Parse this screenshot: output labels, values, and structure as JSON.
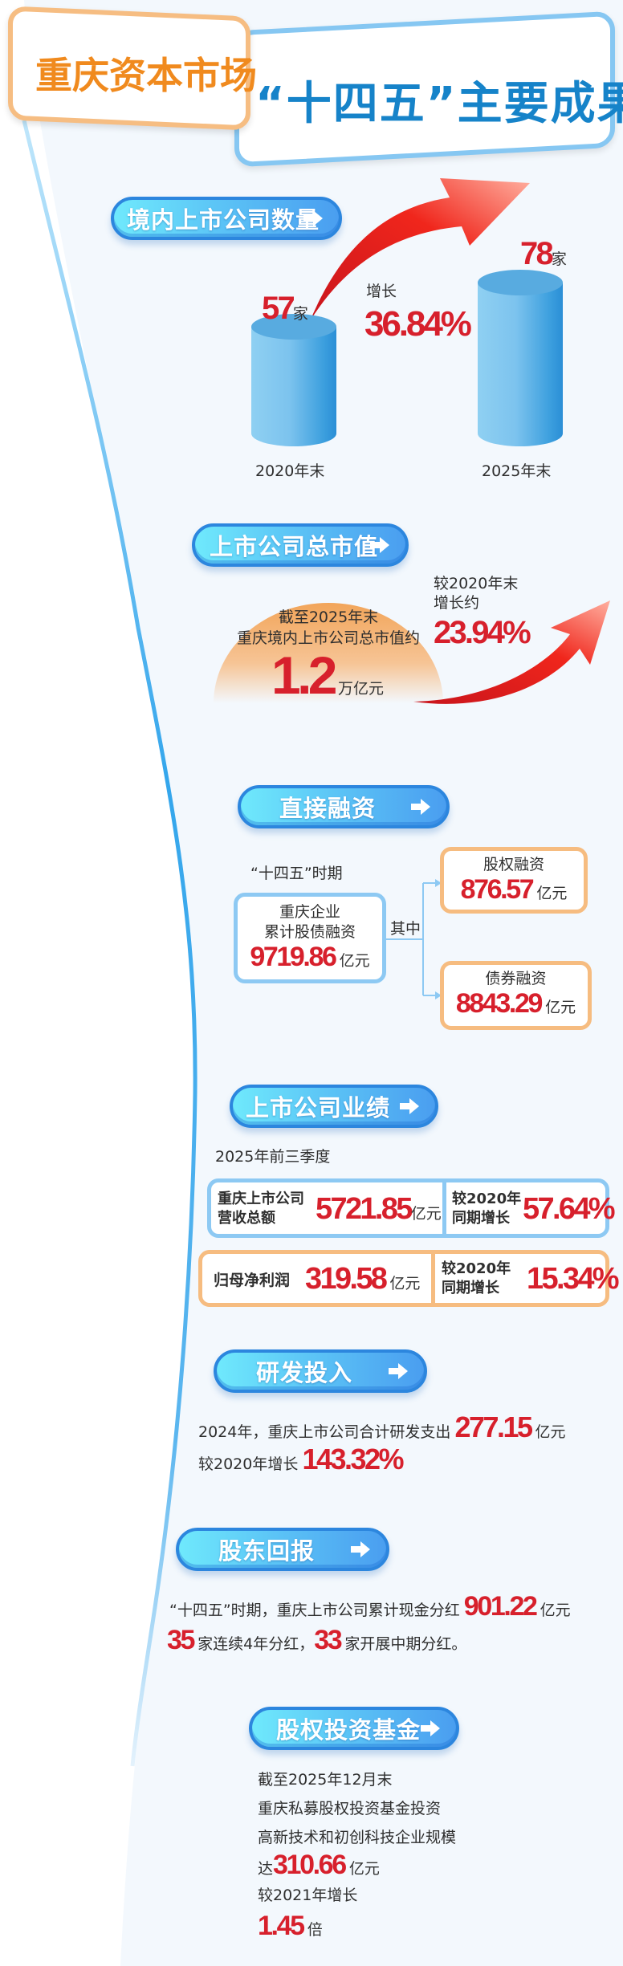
{
  "colors": {
    "brand_orange": "#f08a1e",
    "title_blue": "#1683c9",
    "accent_red": "#d7202c",
    "pill_blue": "#4aa3f0",
    "box_blue": "#8dc9f3",
    "box_orange": "#f6bc80"
  },
  "header": {
    "brand": "重庆资本市场",
    "title": "“十四五”主要成果"
  },
  "listed_count": {
    "title": "境内上市公司数量",
    "icon": "arrow-right-icon",
    "bars": [
      {
        "label": "2020年末",
        "value": 57,
        "value_text": "57",
        "unit": "家"
      },
      {
        "label": "2025年末",
        "value": 78,
        "value_text": "78",
        "unit": "家"
      }
    ],
    "growth_label": "增长",
    "growth": "36.84%"
  },
  "market_cap": {
    "title": "上市公司总市值",
    "line1": "截至2025年末",
    "line2": "重庆境内上市公司总市值约",
    "value": "1.2",
    "unit": "万亿元",
    "cmp1": "较2020年末",
    "cmp2": "增长约",
    "growth": "23.94%"
  },
  "direct_financing": {
    "title": "直接融资",
    "period": "“十四五”时期",
    "main": {
      "line1": "重庆企业",
      "line2": "累计股债融资",
      "value": "9719.86",
      "unit": "亿元"
    },
    "connector": "其中",
    "equity": {
      "label": "股权融资",
      "value": "876.57",
      "unit": "亿元"
    },
    "bond": {
      "label": "债券融资",
      "value": "8843.29",
      "unit": "亿元"
    }
  },
  "performance": {
    "title": "上市公司业绩",
    "period": "2025年前三季度",
    "revenue": {
      "line1": "重庆上市公司",
      "line2": "营收总额",
      "value": "5721.85",
      "unit": "亿元"
    },
    "revenue_growth": {
      "line1": "较2020年",
      "line2": "同期增长",
      "value": "57.64%"
    },
    "profit": {
      "label": "归母净利润",
      "value": "319.58",
      "unit": "亿元"
    },
    "profit_growth": {
      "line1": "较2020年",
      "line2": "同期增长",
      "value": "15.34%"
    }
  },
  "rnd": {
    "title": "研发投入",
    "text1": "2024年，重庆上市公司合计研发支出",
    "value1": "277.15",
    "unit1": "亿元",
    "text2": "较2020年增长",
    "value2": "143.32%"
  },
  "dividends": {
    "title": "股东回报",
    "text1": "“十四五”时期，重庆上市公司累计现金分红",
    "value1": "901.22",
    "unit1": "亿元",
    "value2": "35",
    "text2": "家连续4年分红，",
    "value3": "33",
    "text3": "家开展中期分红。"
  },
  "pe_fund": {
    "title": "股权投资基金",
    "lines": [
      "截至2025年12月末",
      "重庆私募股权投资基金投资",
      "高新技术和初创科技企业规模"
    ],
    "prefix": "达",
    "value": "310.66",
    "unit": "亿元",
    "cmp": "较2021年增长",
    "value2": "1.45",
    "unit2": "倍"
  }
}
